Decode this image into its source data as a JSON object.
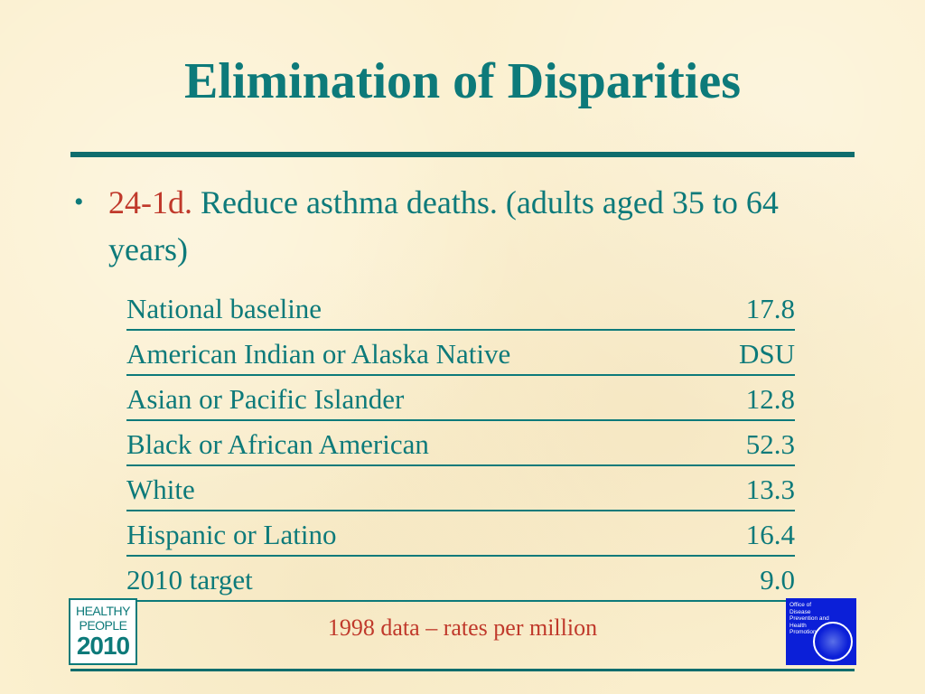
{
  "slide": {
    "title": "Elimination of Disparities",
    "bullet": {
      "code": "24-1d.",
      "text": " Reduce asthma deaths. (adults aged 35 to 64 years)"
    },
    "table": {
      "rows": [
        {
          "label": "National baseline",
          "value": "17.8"
        },
        {
          "label": "American Indian or Alaska Native",
          "value": "DSU"
        },
        {
          "label": "Asian or Pacific Islander",
          "value": "12.8"
        },
        {
          "label": "Black or African American",
          "value": "52.3"
        },
        {
          "label": "White",
          "value": "13.3"
        },
        {
          "label": "Hispanic or Latino",
          "value": "16.4"
        },
        {
          "label": "2010 target",
          "value": "9.0"
        }
      ]
    },
    "footnote": "1998 data – rates per million",
    "logos": {
      "healthy_people": {
        "line1": "HEALTHY",
        "line2": "PEOPLE",
        "line3": "2010"
      },
      "odphp": {
        "text": "Office of Disease Prevention and Health Promotion"
      }
    },
    "colors": {
      "teal": "#0d7a7a",
      "red": "#c0392b",
      "background": "#fbf0cf",
      "odphp_blue": "#0b1fd8"
    }
  }
}
